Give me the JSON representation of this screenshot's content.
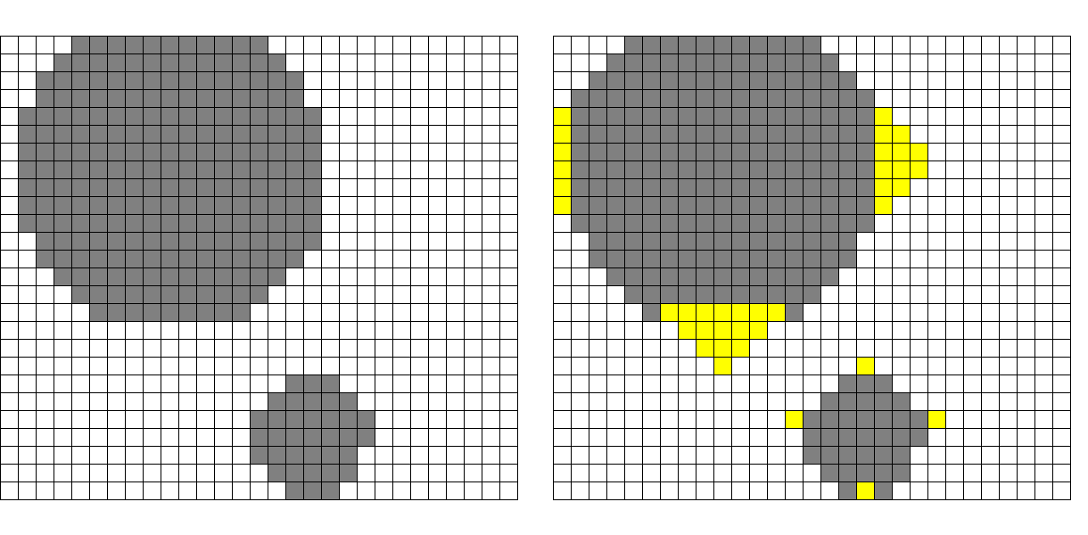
{
  "grid": {
    "cols": 29,
    "rows": 26
  },
  "colors": {
    "background": "#ffffff",
    "line": "#000000",
    "gray": "#808080",
    "yellow": "#ffff00"
  },
  "panels": [
    {
      "name": "grid-left",
      "gray_rows": [
        [
          [
            4,
            14
          ]
        ],
        [
          [
            3,
            15
          ]
        ],
        [
          [
            2,
            16
          ]
        ],
        [
          [
            2,
            16
          ]
        ],
        [
          [
            1,
            17
          ]
        ],
        [
          [
            1,
            17
          ]
        ],
        [
          [
            1,
            17
          ]
        ],
        [
          [
            1,
            17
          ]
        ],
        [
          [
            1,
            17
          ]
        ],
        [
          [
            1,
            17
          ]
        ],
        [
          [
            1,
            17
          ]
        ],
        [
          [
            2,
            17
          ]
        ],
        [
          [
            2,
            16
          ]
        ],
        [
          [
            3,
            15
          ]
        ],
        [
          [
            4,
            14
          ]
        ],
        [
          [
            5,
            13
          ]
        ],
        [],
        [],
        [],
        [
          [
            16,
            18
          ]
        ],
        [
          [
            15,
            19
          ]
        ],
        [
          [
            14,
            20
          ]
        ],
        [
          [
            14,
            20
          ]
        ],
        [
          [
            14,
            19
          ]
        ],
        [
          [
            15,
            19
          ]
        ],
        [
          [
            16,
            18
          ]
        ]
      ],
      "yellow_rows": []
    },
    {
      "name": "grid-right",
      "gray_rows": [
        [
          [
            4,
            14
          ]
        ],
        [
          [
            3,
            15
          ]
        ],
        [
          [
            2,
            16
          ]
        ],
        [
          [
            1,
            17
          ]
        ],
        [
          [
            1,
            17
          ]
        ],
        [
          [
            1,
            17
          ]
        ],
        [
          [
            1,
            17
          ]
        ],
        [
          [
            1,
            17
          ]
        ],
        [
          [
            1,
            17
          ]
        ],
        [
          [
            1,
            17
          ]
        ],
        [
          [
            1,
            17
          ]
        ],
        [
          [
            2,
            16
          ]
        ],
        [
          [
            2,
            16
          ]
        ],
        [
          [
            3,
            15
          ]
        ],
        [
          [
            4,
            14
          ]
        ],
        [
          [
            5,
            13
          ]
        ],
        [],
        [],
        [],
        [
          [
            16,
            18
          ]
        ],
        [
          [
            15,
            19
          ]
        ],
        [
          [
            14,
            20
          ]
        ],
        [
          [
            14,
            20
          ]
        ],
        [
          [
            14,
            19
          ]
        ],
        [
          [
            15,
            19
          ]
        ],
        [
          [
            16,
            18
          ]
        ]
      ],
      "yellow_rows": [
        [],
        [],
        [],
        [],
        [
          [
            0,
            0
          ],
          [
            18,
            18
          ]
        ],
        [
          [
            0,
            0
          ],
          [
            18,
            19
          ]
        ],
        [
          [
            0,
            0
          ],
          [
            18,
            20
          ]
        ],
        [
          [
            0,
            0
          ],
          [
            18,
            20
          ]
        ],
        [
          [
            0,
            0
          ],
          [
            18,
            19
          ]
        ],
        [
          [
            0,
            0
          ],
          [
            18,
            18
          ]
        ],
        [],
        [],
        [],
        [],
        [],
        [
          [
            6,
            12
          ]
        ],
        [
          [
            7,
            11
          ]
        ],
        [
          [
            8,
            10
          ]
        ],
        [
          [
            9,
            9
          ],
          [
            17,
            17
          ]
        ],
        [],
        [],
        [
          [
            13,
            13
          ],
          [
            21,
            21
          ]
        ],
        [],
        [],
        [],
        [
          [
            17,
            17
          ]
        ]
      ]
    }
  ]
}
